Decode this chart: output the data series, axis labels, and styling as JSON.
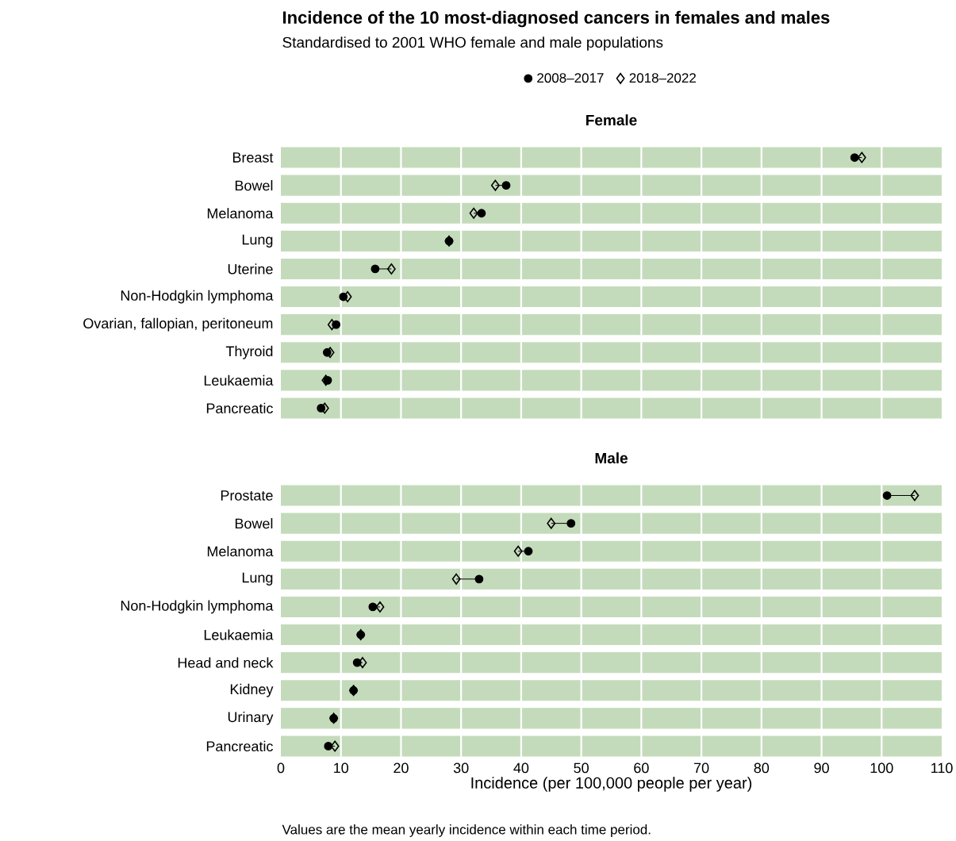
{
  "chart_data": [
    {
      "type": "scatter",
      "title": "Incidence of the 10 most-diagnosed cancers in females and males",
      "subtitle": "Standardised to 2001 WHO female and male populations",
      "annotations": [
        "Female"
      ],
      "categories": [
        "Breast",
        "Bowel",
        "Melanoma",
        "Lung",
        "Uterine",
        "Non-Hodgkin lymphoma",
        "Ovarian, fallopian, peritoneum",
        "Thyroid",
        "Leukaemia",
        "Pancreatic"
      ],
      "series": [
        {
          "name": "2008–2017",
          "color": "#000000",
          "marker": "circle",
          "values": [
            95.5,
            37.5,
            33.4,
            28.0,
            15.7,
            10.4,
            9.2,
            7.7,
            7.8,
            6.7
          ]
        },
        {
          "name": "2018–2022",
          "color": "#000000",
          "marker": "diamond",
          "values": [
            96.7,
            35.7,
            32.1,
            28.0,
            18.4,
            11.1,
            8.5,
            8.2,
            7.5,
            7.3
          ]
        }
      ],
      "xlim": [
        0,
        110
      ],
      "xticks": [
        0,
        10,
        20,
        30,
        40,
        50,
        60,
        70,
        80,
        90,
        100,
        110
      ],
      "grid": "x",
      "legend": "top",
      "tick_labels": "y",
      "orientation": "horizontal"
    },
    {
      "type": "scatter",
      "title": "Male",
      "xlabel": "Incidence (per 100,000 people per year)",
      "annotations": [
        "Values are the mean yearly incidence within each time period."
      ],
      "categories": [
        "Prostate",
        "Bowel",
        "Melanoma",
        "Lung",
        "Non-Hodgkin lymphoma",
        "Leukaemia",
        "Head and neck",
        "Kidney",
        "Urinary",
        "Pancreatic"
      ],
      "series": [
        {
          "color": "#000000",
          "marker": "circle",
          "values": [
            100.9,
            48.3,
            41.2,
            33.0,
            15.3,
            13.3,
            12.7,
            12.1,
            8.8,
            7.9
          ]
        },
        {
          "color": "#000000",
          "marker": "diamond",
          "values": [
            105.5,
            45.0,
            39.5,
            29.2,
            16.5,
            13.3,
            13.6,
            12.1,
            8.8,
            9.0
          ]
        }
      ],
      "xlim": [
        0,
        110
      ],
      "xticks": [
        0,
        10,
        20,
        30,
        40,
        50,
        60,
        70,
        80,
        90,
        100,
        110
      ],
      "grid": "x",
      "orientation": "horizontal"
    }
  ]
}
